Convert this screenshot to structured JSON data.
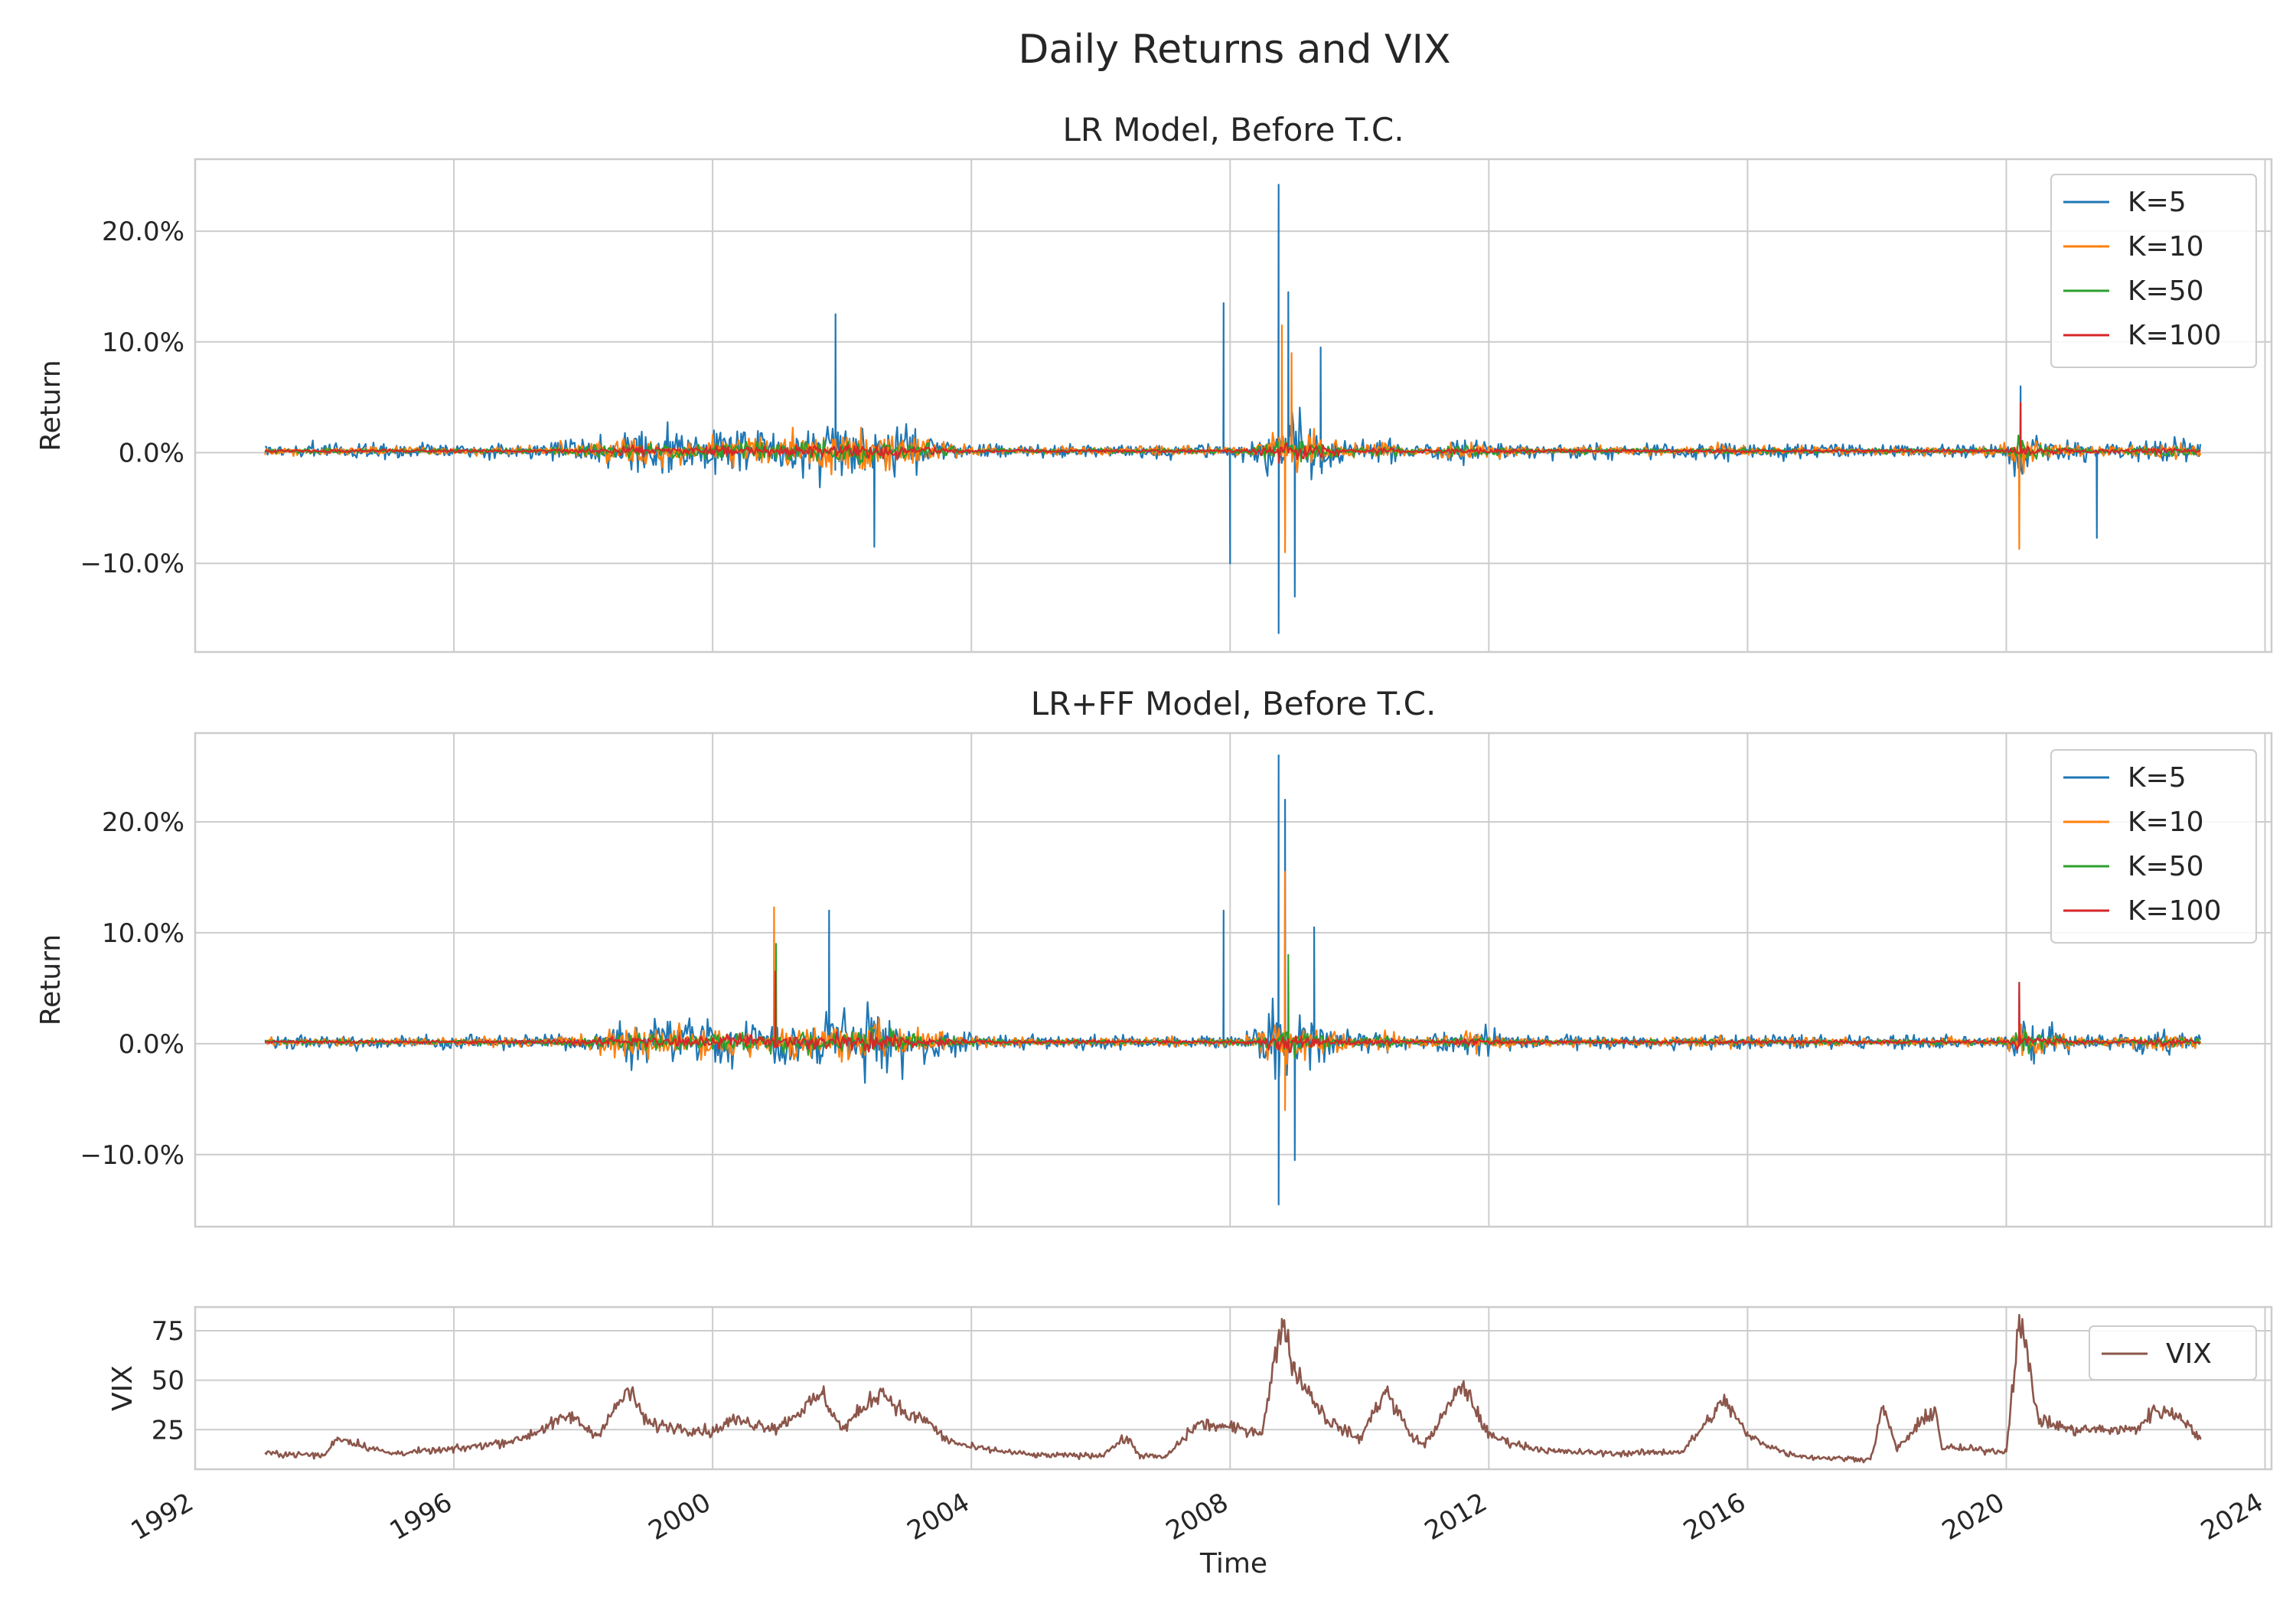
{
  "chart_data": {
    "suptitle": "Daily Returns and VIX",
    "xlabel": "Time",
    "x_range": [
      1992.0,
      2024.1
    ],
    "x_ticks": [
      "1992",
      "1996",
      "2000",
      "2004",
      "2008",
      "2012",
      "2016",
      "2020",
      "2024"
    ],
    "x_tick_values": [
      1992,
      1996,
      2000,
      2004,
      2008,
      2012,
      2016,
      2020,
      2024
    ],
    "colors": {
      "K5": "#1f77b4",
      "K10": "#ff7f0e",
      "K50": "#2ca02c",
      "K100": "#d62728",
      "VIX": "#8c564b"
    },
    "charts": [
      {
        "type": "line",
        "title": "LR Model, Before T.C.",
        "ylabel": "Return",
        "ylim": [
          -0.18,
          0.265
        ],
        "y_ticks": [
          -0.1,
          0.0,
          0.1,
          0.2
        ],
        "y_tick_labels": [
          "−10.0%",
          "0.0%",
          "10.0%",
          "20.0%"
        ],
        "legend": [
          "K=5",
          "K=10",
          "K=50",
          "K=100"
        ],
        "series": [
          {
            "name": "K=5",
            "color": "#1f77b4",
            "scale": 1.0,
            "shocks": [
              [
                2001.9,
                0.125
              ],
              [
                2002.5,
                -0.085
              ],
              [
                2007.9,
                0.135
              ],
              [
                2008.75,
                0.242
              ],
              [
                2008.75,
                -0.163
              ],
              [
                2008.9,
                0.145
              ],
              [
                2009.0,
                -0.13
              ],
              [
                2009.4,
                0.095
              ],
              [
                2020.22,
                0.06
              ],
              [
                2021.4,
                -0.077
              ],
              [
                2008.0,
                -0.1
              ]
            ]
          },
          {
            "name": "K=10",
            "color": "#ff7f0e",
            "scale": 0.62,
            "shocks": [
              [
                2008.8,
                0.115
              ],
              [
                2008.85,
                -0.09
              ],
              [
                2020.2,
                -0.087
              ],
              [
                2008.95,
                0.09
              ]
            ]
          },
          {
            "name": "K=50",
            "color": "#2ca02c",
            "scale": 0.35,
            "shocks": []
          },
          {
            "name": "K=100",
            "color": "#d62728",
            "scale": 0.22,
            "shocks": [
              [
                2020.22,
                0.045
              ]
            ]
          }
        ]
      },
      {
        "type": "line",
        "title": "LR+FF Model, Before T.C.",
        "ylabel": "Return",
        "ylim": [
          -0.165,
          0.28
        ],
        "y_ticks": [
          -0.1,
          0.0,
          0.1,
          0.2
        ],
        "y_tick_labels": [
          "−10.0%",
          "0.0%",
          "10.0%",
          "20.0%"
        ],
        "legend": [
          "K=5",
          "K=10",
          "K=50",
          "K=100"
        ],
        "series": [
          {
            "name": "K=5",
            "color": "#1f77b4",
            "scale": 1.0,
            "shocks": [
              [
                2001.8,
                0.12
              ],
              [
                2007.9,
                0.12
              ],
              [
                2008.75,
                0.26
              ],
              [
                2008.75,
                -0.145
              ],
              [
                2008.85,
                0.22
              ],
              [
                2009.0,
                -0.105
              ],
              [
                2009.3,
                0.105
              ],
              [
                2020.2,
                0.055
              ]
            ]
          },
          {
            "name": "K=10",
            "color": "#ff7f0e",
            "scale": 0.65,
            "shocks": [
              [
                2000.95,
                0.123
              ],
              [
                2008.85,
                0.155
              ],
              [
                2008.85,
                -0.06
              ]
            ]
          },
          {
            "name": "K=50",
            "color": "#2ca02c",
            "scale": 0.37,
            "shocks": [
              [
                2000.98,
                0.09
              ],
              [
                2008.9,
                0.08
              ]
            ]
          },
          {
            "name": "K=100",
            "color": "#d62728",
            "scale": 0.25,
            "shocks": [
              [
                2000.97,
                0.065
              ],
              [
                2020.2,
                0.055
              ]
            ]
          }
        ]
      },
      {
        "type": "line",
        "ylabel": "VIX",
        "ylim": [
          5,
          87
        ],
        "y_ticks": [
          25,
          50,
          75
        ],
        "y_tick_labels": [
          "25",
          "50",
          "75"
        ],
        "legend": [
          "VIX"
        ],
        "series": [
          {
            "name": "VIX",
            "color": "#8c564b",
            "anchors": [
              [
                1993.1,
                13
              ],
              [
                1994.0,
                12
              ],
              [
                1994.2,
                21
              ],
              [
                1995.0,
                13
              ],
              [
                1996.0,
                15
              ],
              [
                1997.0,
                20
              ],
              [
                1997.8,
                32
              ],
              [
                1998.2,
                22
              ],
              [
                1998.7,
                45
              ],
              [
                1999.0,
                28
              ],
              [
                2000.0,
                24
              ],
              [
                2000.3,
                30
              ],
              [
                2001.0,
                26
              ],
              [
                2001.7,
                43
              ],
              [
                2002.0,
                25
              ],
              [
                2002.6,
                45
              ],
              [
                2003.0,
                32
              ],
              [
                2003.3,
                30
              ],
              [
                2003.6,
                20
              ],
              [
                2004.0,
                16
              ],
              [
                2005.0,
                12
              ],
              [
                2006.0,
                12
              ],
              [
                2006.4,
                21
              ],
              [
                2006.6,
                12
              ],
              [
                2007.0,
                11
              ],
              [
                2007.5,
                28
              ],
              [
                2008.0,
                26
              ],
              [
                2008.5,
                24
              ],
              [
                2008.8,
                81
              ],
              [
                2009.0,
                55
              ],
              [
                2009.5,
                30
              ],
              [
                2010.0,
                20
              ],
              [
                2010.4,
                45
              ],
              [
                2010.8,
                22
              ],
              [
                2011.0,
                17
              ],
              [
                2011.6,
                48
              ],
              [
                2012.0,
                22
              ],
              [
                2012.5,
                17
              ],
              [
                2013.0,
                14
              ],
              [
                2014.0,
                13
              ],
              [
                2015.0,
                14
              ],
              [
                2015.65,
                40
              ],
              [
                2016.0,
                22
              ],
              [
                2016.6,
                13
              ],
              [
                2017.0,
                11
              ],
              [
                2017.9,
                10
              ],
              [
                2018.1,
                37
              ],
              [
                2018.3,
                15
              ],
              [
                2018.9,
                36
              ],
              [
                2019.0,
                16
              ],
              [
                2020.0,
                14
              ],
              [
                2020.2,
                83
              ],
              [
                2020.5,
                30
              ],
              [
                2021.0,
                25
              ],
              [
                2022.0,
                25
              ],
              [
                2022.3,
                35
              ],
              [
                2022.7,
                32
              ],
              [
                2023.0,
                20
              ]
            ]
          }
        ]
      }
    ]
  }
}
